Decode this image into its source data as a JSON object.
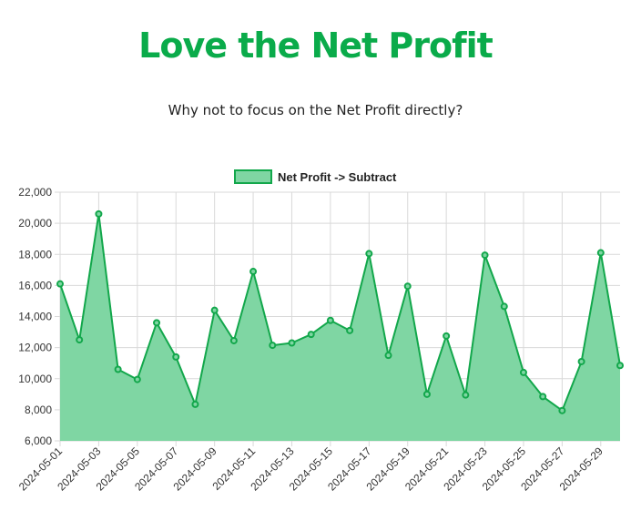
{
  "page": {
    "title": "Love the Net Profit",
    "subtitle": "Why not to focus on the Net Profit directly?"
  },
  "chart_data": {
    "type": "area",
    "x": [
      "2024-05-01",
      "2024-05-02",
      "2024-05-03",
      "2024-05-04",
      "2024-05-05",
      "2024-05-06",
      "2024-05-07",
      "2024-05-08",
      "2024-05-09",
      "2024-05-10",
      "2024-05-11",
      "2024-05-12",
      "2024-05-13",
      "2024-05-14",
      "2024-05-15",
      "2024-05-16",
      "2024-05-17",
      "2024-05-18",
      "2024-05-19",
      "2024-05-20",
      "2024-05-21",
      "2024-05-22",
      "2024-05-23",
      "2024-05-24",
      "2024-05-25",
      "2024-05-26",
      "2024-05-27",
      "2024-05-28",
      "2024-05-29",
      "2024-05-30"
    ],
    "x_tick_labels": [
      "2024-05-01",
      "2024-05-03",
      "2024-05-05",
      "2024-05-07",
      "2024-05-09",
      "2024-05-11",
      "2024-05-13",
      "2024-05-15",
      "2024-05-17",
      "2024-05-19",
      "2024-05-21",
      "2024-05-23",
      "2024-05-25",
      "2024-05-27",
      "2024-05-29"
    ],
    "series": [
      {
        "name": "Net Profit -> Subtract",
        "values": [
          16100,
          12500,
          20600,
          10600,
          9950,
          13600,
          11400,
          8350,
          14400,
          12450,
          16900,
          12150,
          12300,
          12850,
          13750,
          13100,
          18050,
          11500,
          15950,
          9000,
          12750,
          8950,
          17950,
          14650,
          10400,
          8850,
          7950,
          11100,
          18100,
          10850
        ]
      }
    ],
    "ylim": [
      6000,
      22000
    ],
    "y_ticks": [
      "6,000",
      "8,000",
      "10,000",
      "12,000",
      "14,000",
      "16,000",
      "18,000",
      "20,000",
      "22,000"
    ],
    "grid": true,
    "legend_position": "top",
    "colors": {
      "title": "#0aab4a",
      "line": "#12a74b",
      "fill": "#7fd6a3",
      "grid": "#d9d9d9"
    }
  }
}
